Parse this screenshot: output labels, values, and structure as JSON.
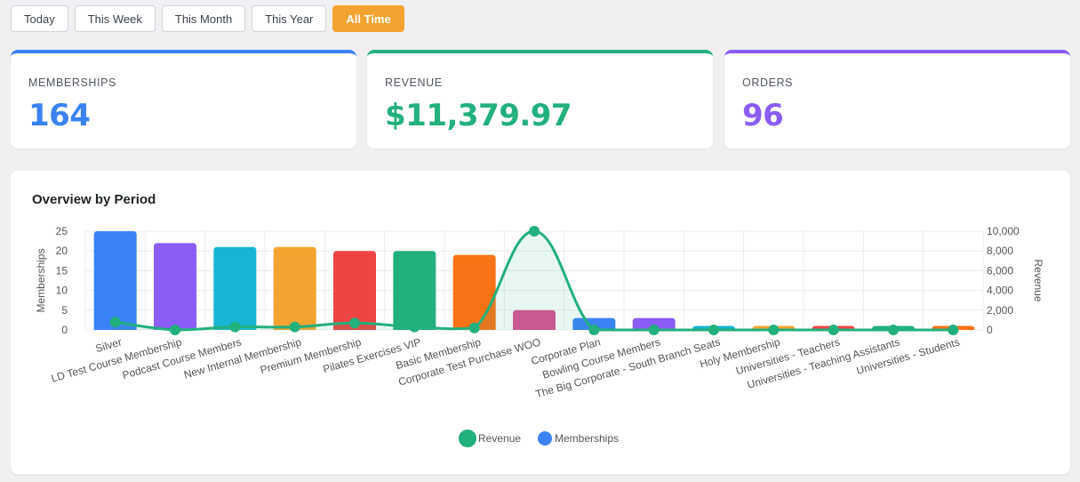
{
  "filters": {
    "items": [
      {
        "label": "Today",
        "active": false
      },
      {
        "label": "This Week",
        "active": false
      },
      {
        "label": "This Month",
        "active": false
      },
      {
        "label": "This Year",
        "active": false
      },
      {
        "label": "All Time",
        "active": true
      }
    ]
  },
  "stats": {
    "memberships": {
      "label": "MEMBERSHIPS",
      "value": "164",
      "color": "#3b82f6"
    },
    "revenue": {
      "label": "REVENUE",
      "value": "$11,379.97",
      "color": "#22b07d"
    },
    "orders": {
      "label": "ORDERS",
      "value": "96",
      "color": "#8b5cf6"
    }
  },
  "chart": {
    "title": "Overview by Period"
  },
  "chart_data": {
    "type": "bar",
    "categories": [
      "Silver",
      "LD Test Course Membership",
      "Podcast Course Members",
      "New Internal Membership",
      "Premium Membership",
      "Pilates Exercises VIP",
      "Basic Membership",
      "Corporate Test Purchase WOO",
      "Corporate Plan",
      "Bowling Course Members",
      "The Big Corporate - South Branch Seats",
      "Holy Membership",
      "Universities - Teachers",
      "Universities - Teaching Assistants",
      "Universities - Students"
    ],
    "series": [
      {
        "name": "Memberships",
        "type": "bar",
        "axis": "left",
        "values": [
          25,
          22,
          21,
          21,
          20,
          20,
          19,
          5,
          3,
          3,
          1,
          1,
          1,
          1,
          1
        ]
      },
      {
        "name": "Revenue",
        "type": "line",
        "axis": "right",
        "color": "#22b07d",
        "values": [
          800,
          0,
          300,
          300,
          700,
          300,
          200,
          10000,
          0,
          0,
          0,
          0,
          0,
          0,
          0
        ]
      }
    ],
    "bar_colors": [
      "#3b82f6",
      "#8b5cf6",
      "#17b5d3",
      "#f3a430",
      "#ef4444",
      "#22b07d",
      "#f97316",
      "#dc5094",
      "#3b82f6",
      "#8b5cf6",
      "#17b5d3",
      "#f3a430",
      "#ef4444",
      "#22b07d",
      "#f97316"
    ],
    "ylabel_left": "Memberships",
    "ylabel_right": "Revenue",
    "ylim_left": [
      0,
      25
    ],
    "ylim_right": [
      0,
      10000
    ],
    "yticks_left": [
      "0",
      "5",
      "10",
      "15",
      "20",
      "25"
    ],
    "yticks_right": [
      "0",
      "2,000",
      "4,000",
      "6,000",
      "8,000",
      "10,000"
    ],
    "legend": {
      "position": "bottom",
      "items": [
        "Revenue",
        "Memberships"
      ]
    },
    "grid": true
  }
}
